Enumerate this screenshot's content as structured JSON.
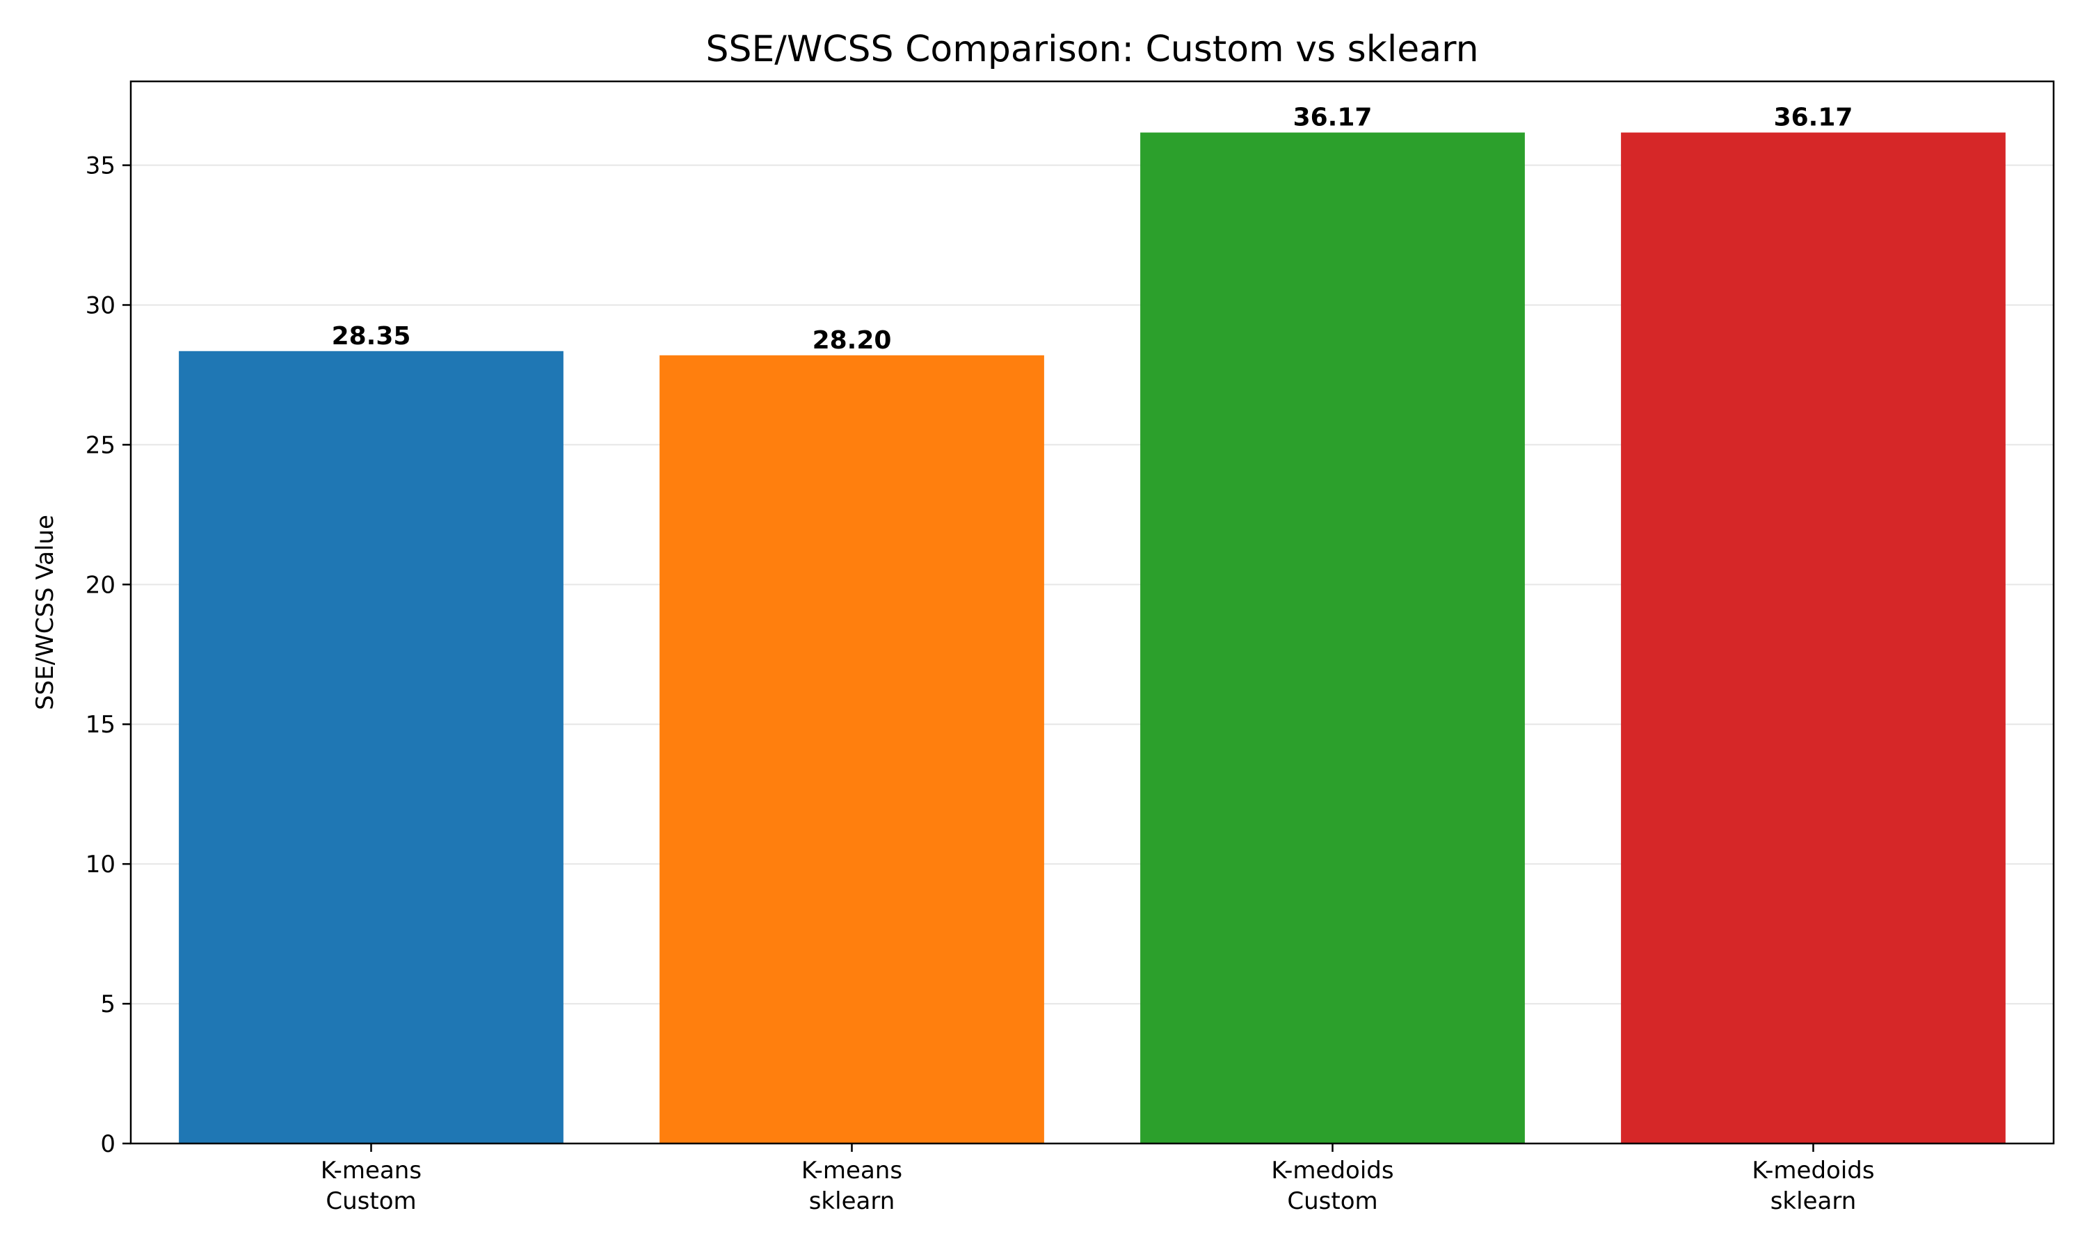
{
  "chart_data": {
    "type": "bar",
    "title": "SSE/WCSS Comparison: Custom vs sklearn",
    "xlabel": "",
    "ylabel": "SSE/WCSS Value",
    "categories": [
      [
        "K-means",
        "Custom"
      ],
      [
        "K-means",
        "sklearn"
      ],
      [
        "K-medoids",
        "Custom"
      ],
      [
        "K-medoids",
        "sklearn"
      ]
    ],
    "values": [
      28.35,
      28.2,
      36.17,
      36.17
    ],
    "value_labels": [
      "28.35",
      "28.20",
      "36.17",
      "36.17"
    ],
    "colors": [
      "#1f77b4",
      "#ff7f0e",
      "#2ca02c",
      "#d62728"
    ],
    "ylim": [
      0,
      38
    ],
    "yticks": [
      0,
      5,
      10,
      15,
      20,
      25,
      30,
      35
    ],
    "grid": "y",
    "grid_color": "#e6e6e6"
  }
}
